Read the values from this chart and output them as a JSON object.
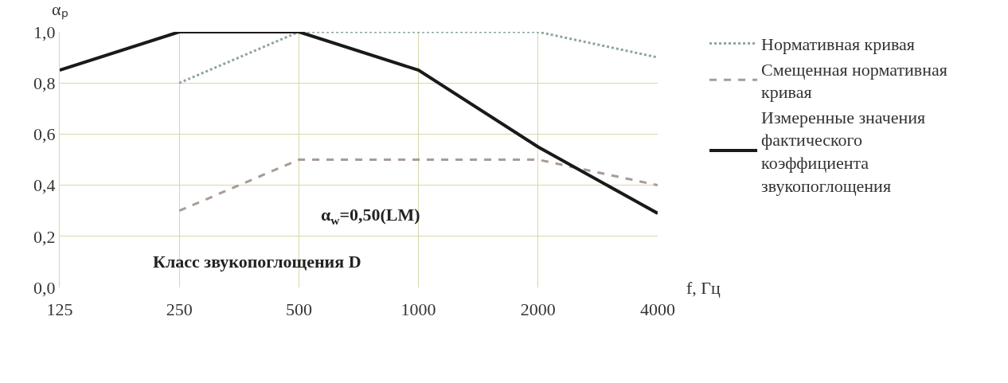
{
  "chart_data": {
    "type": "line",
    "categories": [
      "125",
      "250",
      "500",
      "1000",
      "2000",
      "4000"
    ],
    "ylabel": "αₚ",
    "xlabel": "f, Гц",
    "ylim": [
      0,
      1
    ],
    "yticks": [
      {
        "value": 0,
        "label": "0,0"
      },
      {
        "value": 0.2,
        "label": "0,2"
      },
      {
        "value": 0.4,
        "label": "0,4"
      },
      {
        "value": 0.6,
        "label": "0,6"
      },
      {
        "value": 0.8,
        "label": "0,8"
      },
      {
        "value": 1,
        "label": "1,0"
      }
    ],
    "series": [
      {
        "name": "Нормативная кривая",
        "color": "#8fa3a3",
        "line_style": "dotted",
        "values": [
          null,
          0.8,
          1.0,
          1.0,
          1.0,
          0.9
        ]
      },
      {
        "name": "Смещенная нормативная кривая",
        "color": "#a89c94",
        "line_style": "dashed",
        "values": [
          null,
          0.3,
          0.5,
          0.5,
          0.5,
          0.4
        ]
      },
      {
        "name": "Измеренные значения фактического коэффициента звукопоглощения",
        "color": "#1a1a1a",
        "line_style": "solid",
        "values": [
          0.85,
          1.0,
          1.0,
          0.85,
          0.55,
          0.29
        ]
      }
    ],
    "annotations": [
      "α$_{w}$=0,50(LM)",
      "Класс звукопоглощения D"
    ],
    "grid": true,
    "legend": "right",
    "marker": "none"
  }
}
